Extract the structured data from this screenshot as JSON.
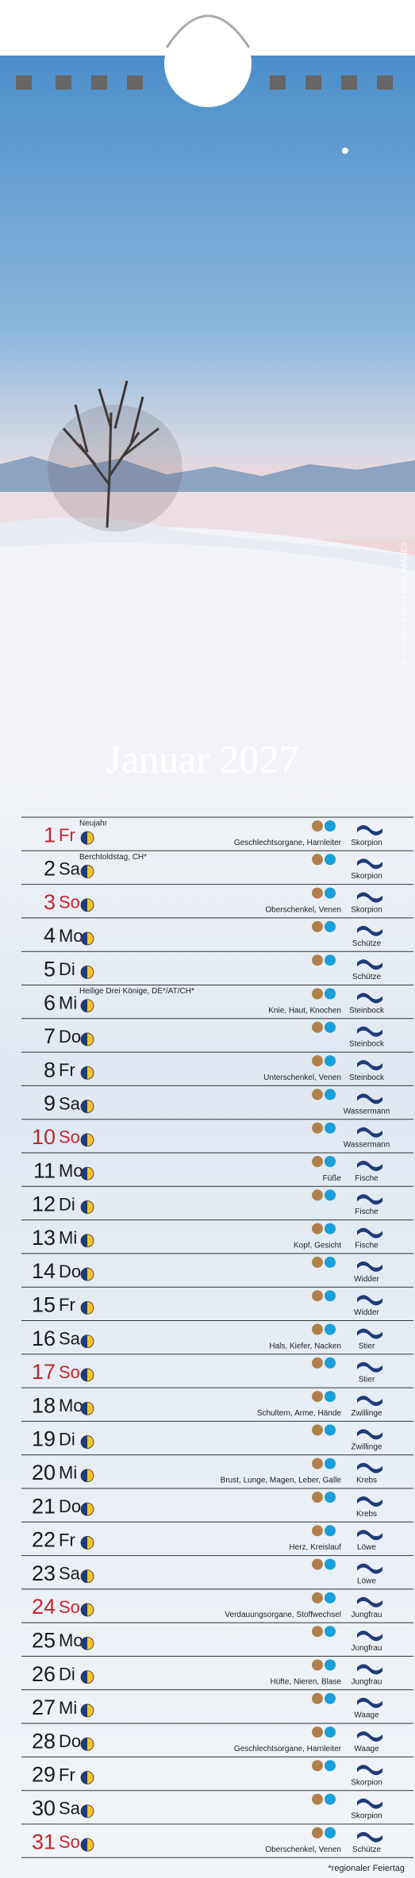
{
  "header": {
    "title": "Januar 2027",
    "credit": "© Christian Bäck/HUBER IMAGES"
  },
  "days": [
    {
      "day": "1",
      "weekday": "Fr",
      "color": "#c0272d",
      "holiday": "Neujahr",
      "body": "Geschlechtsorgane, Harnleiter",
      "sign": "Skorpion"
    },
    {
      "day": "2",
      "weekday": "Sa",
      "holiday": "Berchtoldstag, CH*",
      "sign": "Skorpion"
    },
    {
      "day": "3",
      "weekday": "So",
      "color": "#c0272d",
      "body": "Oberschenkel, Venen",
      "sign": "Skorpion"
    },
    {
      "day": "4",
      "weekday": "Mo",
      "sign": "Schütze"
    },
    {
      "day": "5",
      "weekday": "Di",
      "sign": "Schütze"
    },
    {
      "day": "6",
      "weekday": "Mi",
      "holiday": "Heilige Drei Könige, DE*/AT/CH*",
      "body": "Knie, Haut, Knochen",
      "sign": "Steinbock"
    },
    {
      "day": "7",
      "weekday": "Do",
      "sign": "Steinbock"
    },
    {
      "day": "8",
      "weekday": "Fr",
      "body": "Unterschenkel, Venen",
      "sign": "Steinbock"
    },
    {
      "day": "9",
      "weekday": "Sa",
      "sign": "Wassermann"
    },
    {
      "day": "10",
      "weekday": "So",
      "color": "#c0272d",
      "sign": "Wassermann"
    },
    {
      "day": "11",
      "weekday": "Mo",
      "body": "Füße",
      "sign": "Fische"
    },
    {
      "day": "12",
      "weekday": "Di",
      "sign": "Fische"
    },
    {
      "day": "13",
      "weekday": "Mi",
      "body": "Kopf, Gesicht",
      "sign": "Fische"
    },
    {
      "day": "14",
      "weekday": "Do",
      "sign": "Widder"
    },
    {
      "day": "15",
      "weekday": "Fr",
      "sign": "Widder"
    },
    {
      "day": "16",
      "weekday": "Sa",
      "body": "Hals, Kiefer, Nacken",
      "sign": "Stier"
    },
    {
      "day": "17",
      "weekday": "So",
      "color": "#c0272d",
      "sign": "Stier"
    },
    {
      "day": "18",
      "weekday": "Mo",
      "body": "Schultern, Arme, Hände",
      "sign": "Zwillinge"
    },
    {
      "day": "19",
      "weekday": "Di",
      "sign": "Zwillinge"
    },
    {
      "day": "20",
      "weekday": "Mi",
      "body": "Brust, Lunge, Magen, Leber, Galle",
      "sign": "Krebs"
    },
    {
      "day": "21",
      "weekday": "Do",
      "sign": "Krebs"
    },
    {
      "day": "22",
      "weekday": "Fr",
      "body": "Herz, Kreislauf",
      "sign": "Löwe"
    },
    {
      "day": "23",
      "weekday": "Sa",
      "sign": "Löwe"
    },
    {
      "day": "24",
      "weekday": "So",
      "color": "#c0272d",
      "body": "Verdauungsorgane, Stoffwechsel",
      "sign": "Jungfrau"
    },
    {
      "day": "25",
      "weekday": "Mo",
      "sign": "Jungfrau"
    },
    {
      "day": "26",
      "weekday": "Di",
      "body": "Hüfte, Nieren, Blase",
      "sign": "Jungfrau"
    },
    {
      "day": "27",
      "weekday": "Mi",
      "sign": "Waage"
    },
    {
      "day": "28",
      "weekday": "Do",
      "body": "Geschlechtsorgane, Harnleiter",
      "sign": "Waage"
    },
    {
      "day": "29",
      "weekday": "Fr",
      "sign": "Skorpion"
    },
    {
      "day": "30",
      "weekday": "Sa",
      "sign": "Skorpion"
    },
    {
      "day": "31",
      "weekday": "So",
      "color": "#c0272d",
      "body": "Oberschenkel, Venen",
      "sign": "Schütze"
    }
  ],
  "footnote": "*regionaler Feiertag"
}
